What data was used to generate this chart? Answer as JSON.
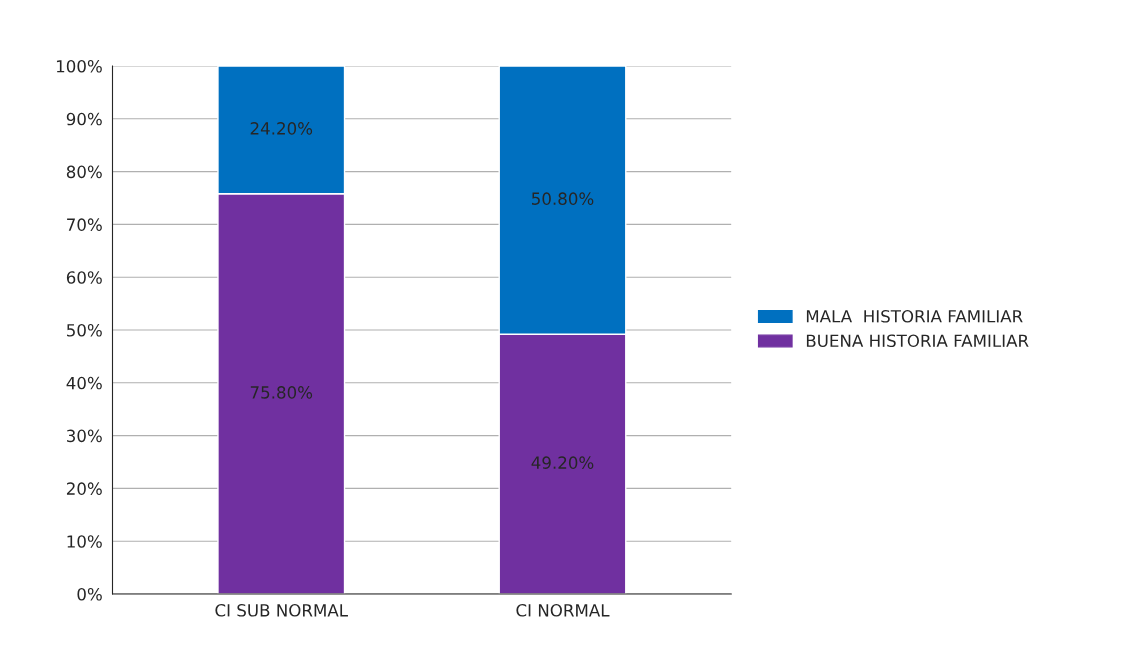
{
  "chart_data": {
    "type": "bar",
    "stacked": true,
    "categories": [
      "CI SUB NORMAL",
      "CI NORMAL"
    ],
    "series": [
      {
        "name": "BUENA HISTORIA FAMILIAR",
        "color": "#7030a0",
        "values": [
          75.8,
          49.2
        ],
        "value_labels": [
          "75.80%",
          "49.20%"
        ]
      },
      {
        "name": "MALA  HISTORIA FAMILIAR",
        "color": "#0070c0",
        "values": [
          24.2,
          50.8
        ],
        "value_labels": [
          "24.20%",
          "50.80%"
        ]
      }
    ],
    "ylim": [
      0,
      100
    ],
    "yticks": [
      {
        "value": 0,
        "label": "0%"
      },
      {
        "value": 10,
        "label": "10%"
      },
      {
        "value": 20,
        "label": "20%"
      },
      {
        "value": 30,
        "label": "30%"
      },
      {
        "value": 40,
        "label": "40%"
      },
      {
        "value": 50,
        "label": "50%"
      },
      {
        "value": 60,
        "label": "60%"
      },
      {
        "value": 70,
        "label": "70%"
      },
      {
        "value": 80,
        "label": "80%"
      },
      {
        "value": 90,
        "label": "90%"
      },
      {
        "value": 100,
        "label": "100%"
      }
    ],
    "grid": "y",
    "legend": "right"
  }
}
